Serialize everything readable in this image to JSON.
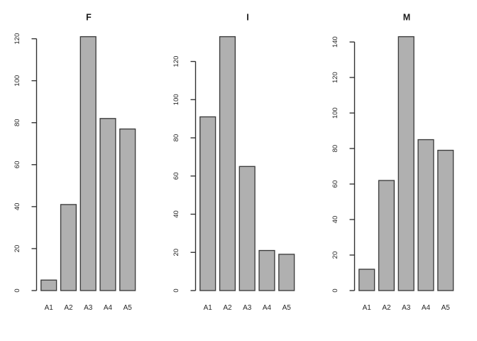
{
  "figure": {
    "background": "#ffffff",
    "panel_count": 3
  },
  "colors": {
    "bar_fill": "#b0b0b0",
    "bar_border": "#3c3c3c",
    "axis": "#2e2e2e",
    "text": "#1a1a1a"
  },
  "chart_data": [
    {
      "type": "bar",
      "title": "F",
      "categories": [
        "A1",
        "A2",
        "A3",
        "A4",
        "A5"
      ],
      "values": [
        5,
        41,
        121,
        82,
        77
      ],
      "yticks": [
        0,
        20,
        40,
        60,
        80,
        100,
        120
      ],
      "ylim": [
        0,
        121
      ],
      "xlabel": "",
      "ylabel": "",
      "grid": false,
      "legend": "none"
    },
    {
      "type": "bar",
      "title": "I",
      "categories": [
        "A1",
        "A2",
        "A3",
        "A4",
        "A5"
      ],
      "values": [
        91,
        133,
        65,
        21,
        19
      ],
      "yticks": [
        0,
        20,
        40,
        60,
        80,
        100,
        120
      ],
      "ylim": [
        0,
        133
      ],
      "xlabel": "",
      "ylabel": "",
      "grid": false,
      "legend": "none"
    },
    {
      "type": "bar",
      "title": "M",
      "categories": [
        "A1",
        "A2",
        "A3",
        "A4",
        "A5"
      ],
      "values": [
        12,
        62,
        143,
        85,
        79
      ],
      "yticks": [
        0,
        20,
        40,
        60,
        80,
        100,
        120,
        140
      ],
      "ylim": [
        0,
        143
      ],
      "xlabel": "",
      "ylabel": "",
      "grid": false,
      "legend": "none"
    }
  ]
}
